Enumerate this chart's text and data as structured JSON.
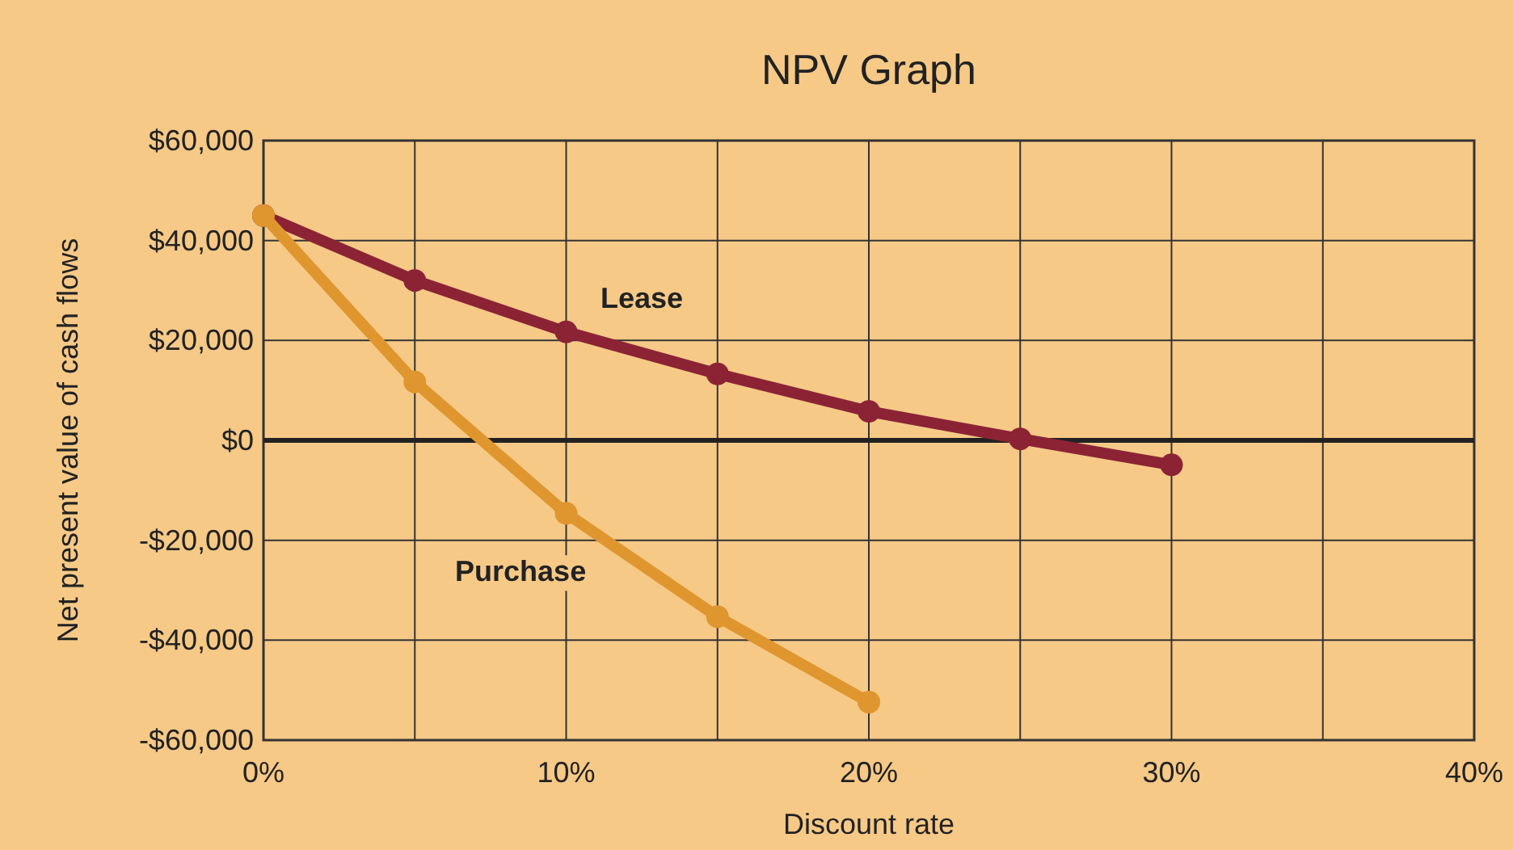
{
  "chart_data": {
    "type": "line",
    "title": "NPV Graph",
    "xlabel": "Discount rate",
    "ylabel": "Net present value of cash flows",
    "x": [
      0,
      5,
      10,
      15,
      20,
      25,
      30
    ],
    "series": [
      {
        "name": "Lease",
        "color": "#8b2335",
        "values": [
          45000,
          32000,
          21700,
          13300,
          5800,
          300,
          -4900
        ]
      },
      {
        "name": "Purchase",
        "color": "#e0962e",
        "values": [
          45000,
          11700,
          -14600,
          -35300,
          -52400,
          null,
          null
        ]
      }
    ],
    "xlim": [
      0,
      40
    ],
    "xticks": [
      {
        "value": 0,
        "label": "0%"
      },
      {
        "value": 5,
        "label": null
      },
      {
        "value": 10,
        "label": "10%"
      },
      {
        "value": 15,
        "label": null
      },
      {
        "value": 20,
        "label": "20%"
      },
      {
        "value": 25,
        "label": null
      },
      {
        "value": 30,
        "label": "30%"
      },
      {
        "value": 35,
        "label": null
      },
      {
        "value": 40,
        "label": "40%"
      }
    ],
    "ylim": [
      -60000,
      60000
    ],
    "yticks": [
      {
        "value": -60000,
        "label": "-$60,000"
      },
      {
        "value": -40000,
        "label": "-$40,000"
      },
      {
        "value": -20000,
        "label": "-$20,000"
      },
      {
        "value": 0,
        "label": "$0"
      },
      {
        "value": 20000,
        "label": "$20,000"
      },
      {
        "value": 40000,
        "label": "$40,000"
      },
      {
        "value": 60000,
        "label": "$60,000"
      }
    ],
    "ref_lines": [
      {
        "axis": "y",
        "value": 0,
        "color": "#222222"
      }
    ],
    "grid": true,
    "marker": "circle",
    "line_style": "solid"
  }
}
